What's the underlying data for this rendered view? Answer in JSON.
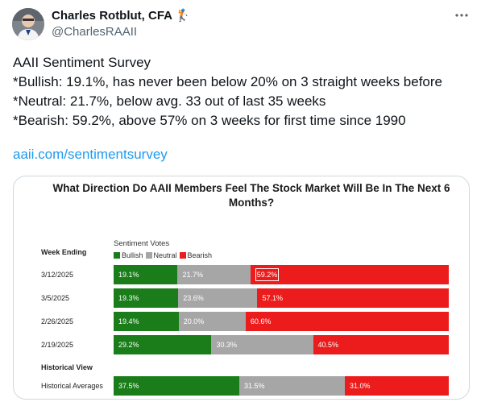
{
  "author": {
    "name": "Charles Rotblut, CFA 🏌️",
    "handle": "@CharlesRAAII"
  },
  "tweet": {
    "lines": [
      "AAII Sentiment Survey",
      "*Bullish: 19.1%, has never been below 20% on 3 straight weeks before",
      "*Neutral: 21.7%, below avg. 33 out of last 35 weeks",
      "*Bearish: 59.2%, above 57% on 3 weeks for first time since 1990"
    ],
    "link": "aaii.com/sentimentsurvey"
  },
  "chart_data": {
    "type": "bar",
    "orientation": "horizontal",
    "stacked": true,
    "title": "What Direction Do AAII Members Feel The Stock Market Will Be In The Next 6 Months?",
    "legend_title": "Sentiment Votes",
    "row_header": "Week Ending",
    "section_header": "Historical View",
    "categories": [
      "3/12/2025",
      "3/5/2025",
      "2/26/2025",
      "2/19/2025",
      "Historical Averages"
    ],
    "series": [
      {
        "name": "Bullish",
        "color": "#1a7d1a",
        "values": [
          19.1,
          19.3,
          19.4,
          29.2,
          37.5
        ],
        "labels": [
          "19.1%",
          "19.3%",
          "19.4%",
          "29.2%",
          "37.5%"
        ]
      },
      {
        "name": "Neutral",
        "color": "#a6a6a6",
        "values": [
          21.7,
          23.6,
          20.0,
          30.3,
          31.5
        ],
        "labels": [
          "21.7%",
          "23.6%",
          "20.0%",
          "30.3%",
          "31.5%"
        ]
      },
      {
        "name": "Bearish",
        "color": "#ec1c1c",
        "values": [
          59.2,
          57.1,
          60.6,
          40.5,
          31.0
        ],
        "labels": [
          "59.2%",
          "57.1%",
          "60.6%",
          "40.5%",
          "31.0%"
        ]
      }
    ],
    "xlim": [
      0,
      100
    ],
    "legend_position": "top-left"
  }
}
